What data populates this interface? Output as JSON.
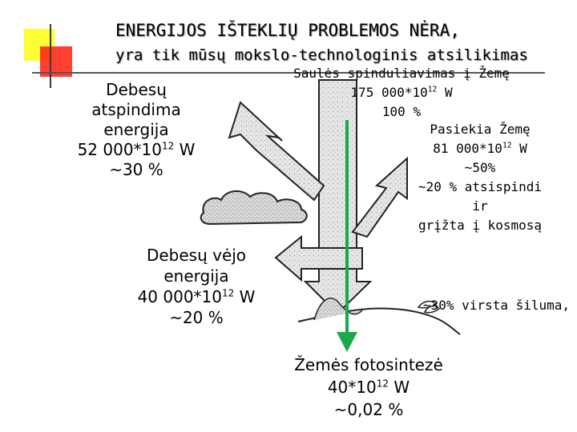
{
  "header": {
    "title_line1": "ENERGIJOS IŠTEKLIŲ PROBLEMOS NĖRA,",
    "title_line2": "yra tik mūsų mokslo-technologinis atsilikimas"
  },
  "sun": {
    "label": "Saulės spinduliavimas į Žemę",
    "value_base": "175 000*10",
    "value_exp": "12",
    "value_unit": " W",
    "percent": "100 %"
  },
  "cloud_reflection": {
    "line1": "Debesų",
    "line2": "atspindima",
    "line3": "energija",
    "value_base": "52 000*10",
    "value_exp": "12",
    "value_unit": "  W",
    "percent": "~30 %"
  },
  "reaches_earth": {
    "line1": "Pasiekia Žemę",
    "value_base": "81 000*10",
    "value_exp": "12",
    "value_unit": " W",
    "percent": "~50%",
    "line4": "~20 % atsispindi",
    "line5": "ir",
    "line6": "grįžta į kosmosą"
  },
  "wind": {
    "line1": "Debesų vėjo",
    "line2": "energija",
    "value_base": "40 000*10",
    "value_exp": "12",
    "value_unit": " W",
    "percent": "~20 %"
  },
  "heat": {
    "label": "~30% virsta šiluma,"
  },
  "photosynthesis": {
    "line1": "Žemės fotosintezė",
    "value_base": "40*10",
    "value_exp": "12",
    "value_unit": " W",
    "percent": "~0,02 %"
  },
  "colors": {
    "accent_yellow": "#ffff33",
    "accent_red": "#ff2a1a",
    "arrow_green": "#1aa84a",
    "arrow_gray": "#d8d8d8"
  }
}
